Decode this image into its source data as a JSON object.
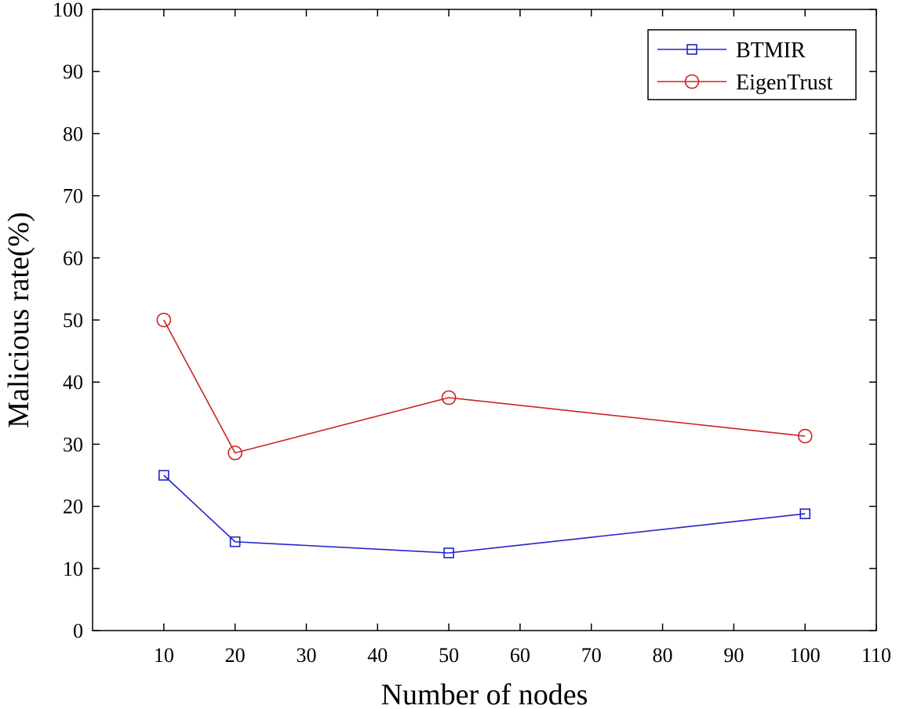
{
  "chart_data": {
    "type": "line",
    "title": "",
    "xlabel": "Number of nodes",
    "ylabel": "Malicious rate(%)",
    "xlim": [
      0,
      110
    ],
    "ylim": [
      0,
      100
    ],
    "xticks": [
      10,
      20,
      30,
      40,
      50,
      60,
      70,
      80,
      90,
      100,
      110
    ],
    "yticks": [
      0,
      10,
      20,
      30,
      40,
      50,
      60,
      70,
      80,
      90,
      100
    ],
    "grid": false,
    "legend_position": "top-right",
    "x": [
      10,
      20,
      50,
      100
    ],
    "series": [
      {
        "name": "BTMIR",
        "values": [
          25.0,
          14.3,
          12.5,
          18.8
        ],
        "color": "#2222cc",
        "marker": "square"
      },
      {
        "name": "EigenTrust",
        "values": [
          50.0,
          28.6,
          37.5,
          31.3
        ],
        "color": "#cc2222",
        "marker": "circle"
      }
    ]
  }
}
